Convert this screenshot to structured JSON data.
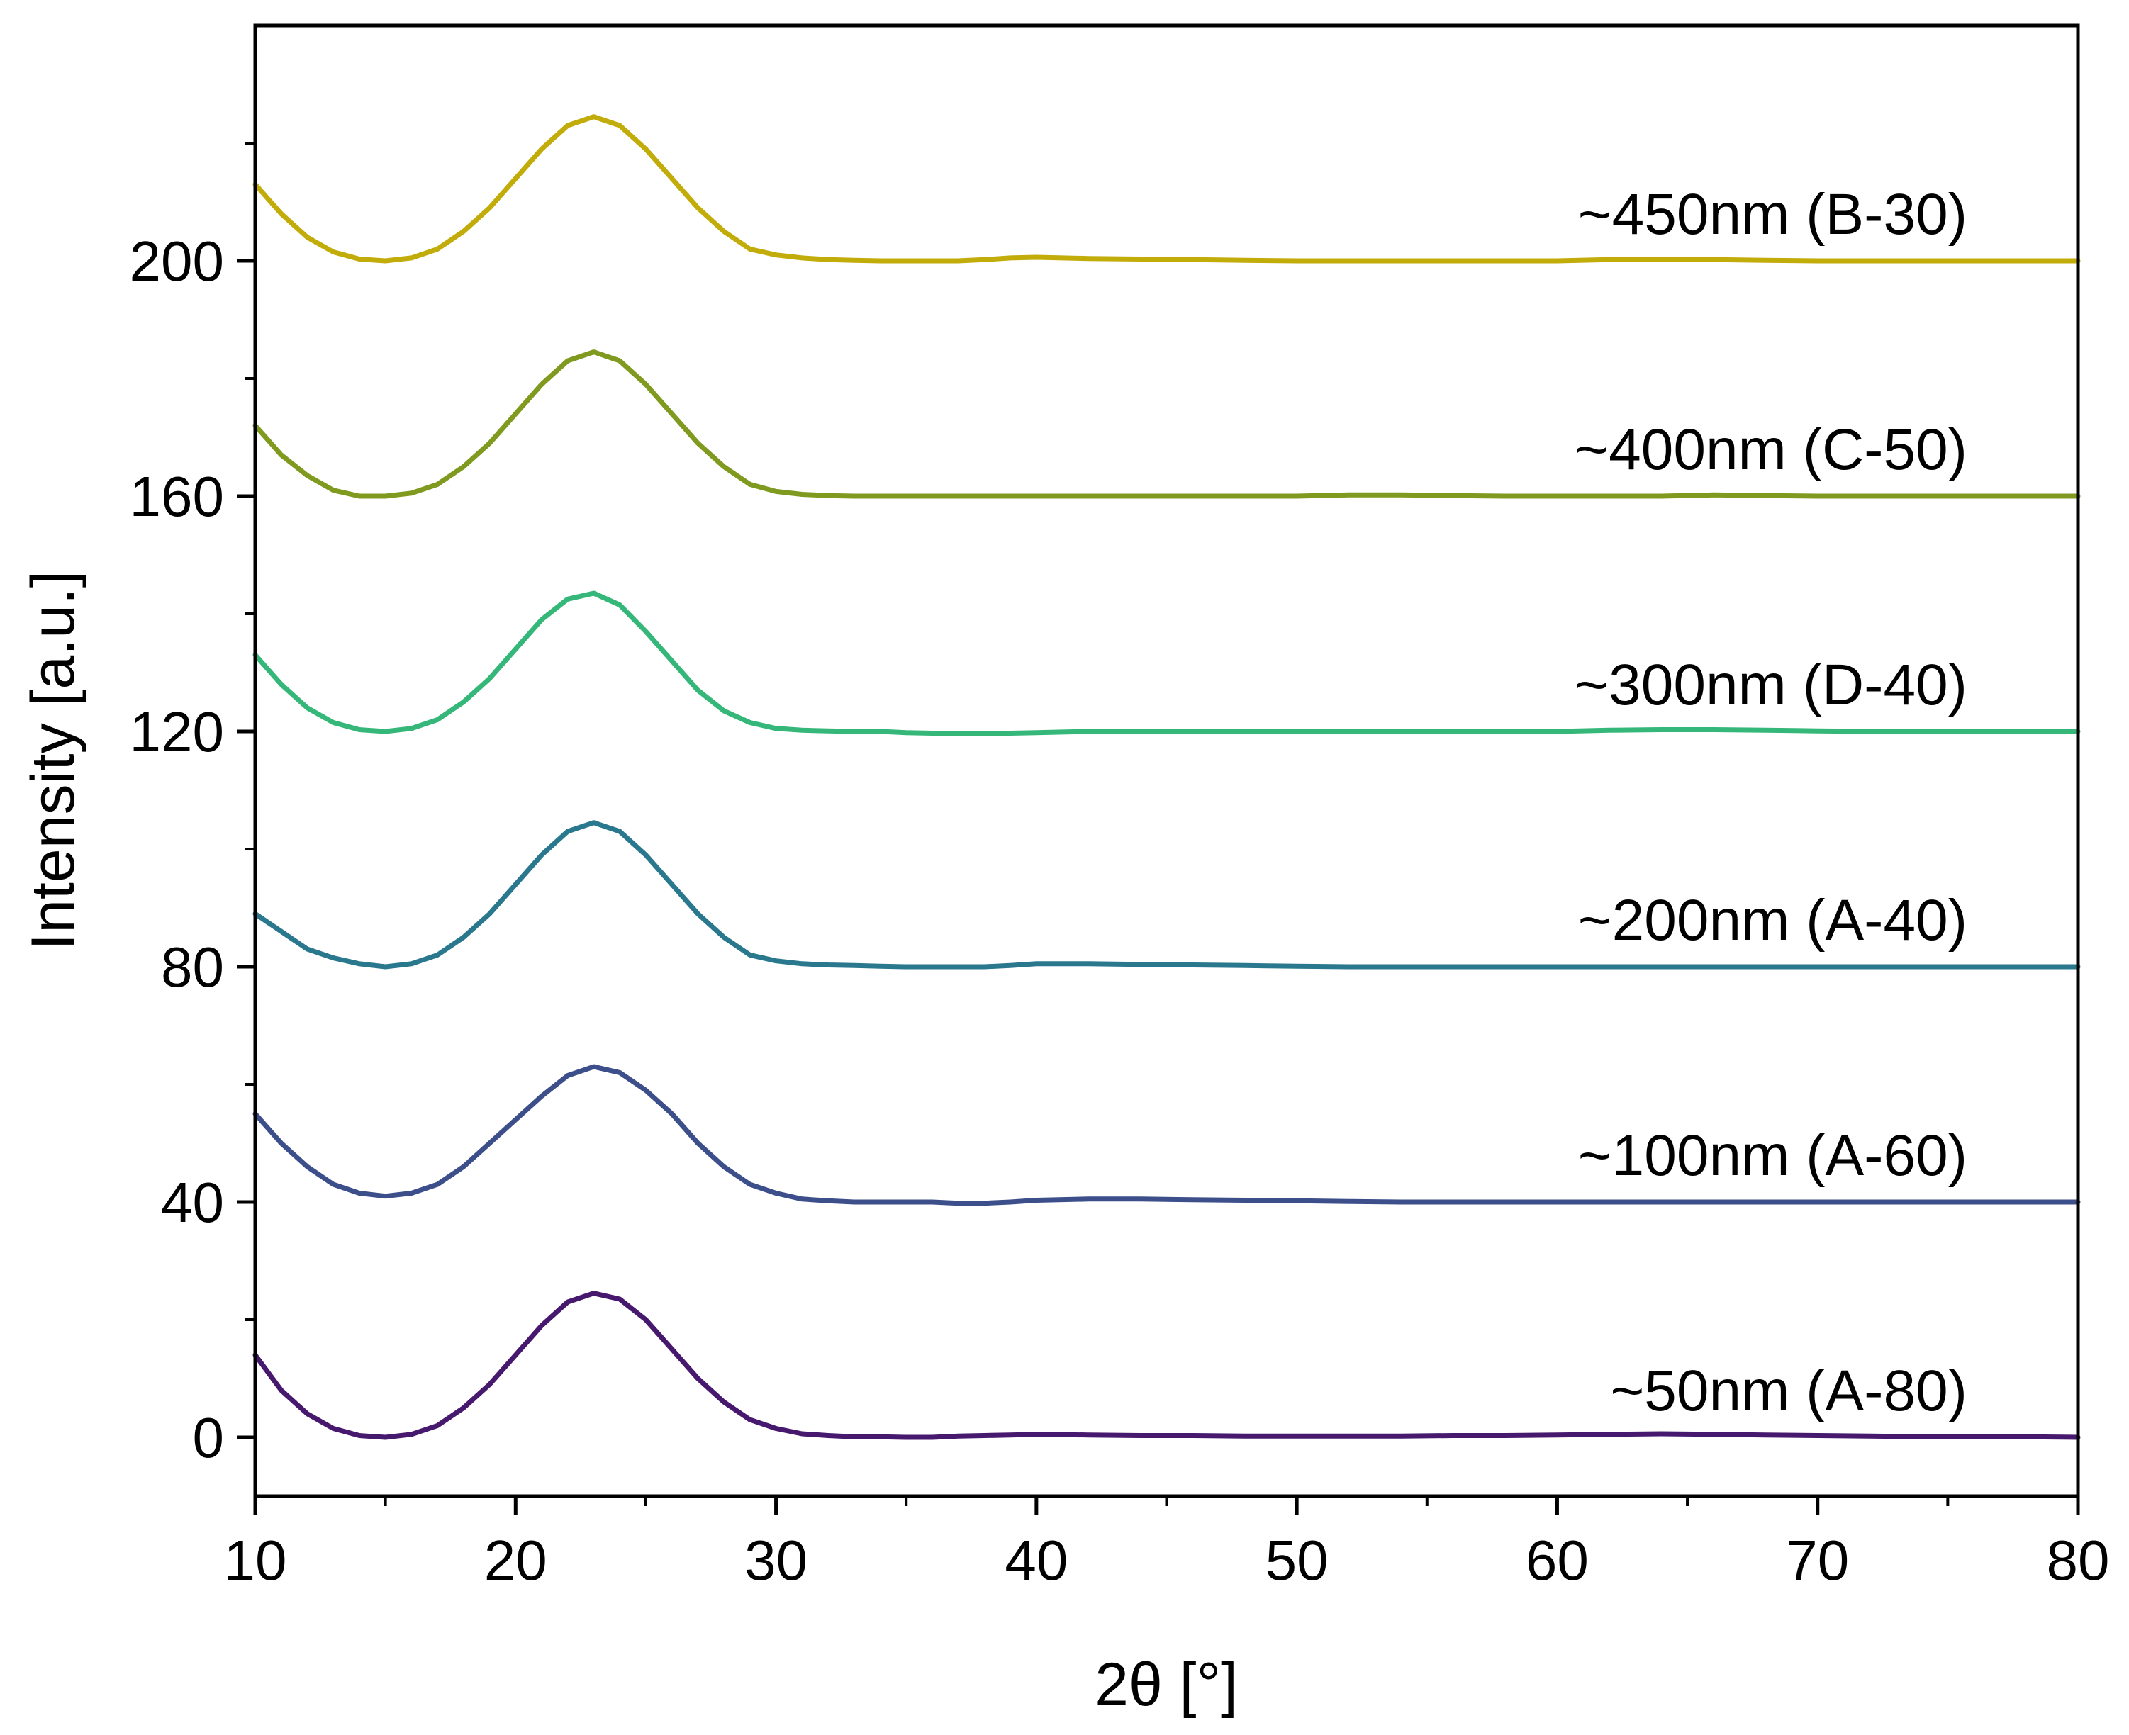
{
  "chart_data": {
    "type": "line",
    "title": "",
    "xlabel": "2θ  [°]",
    "ylabel": "Intensity [a.u.]",
    "xlim": [
      10,
      80
    ],
    "ylim": [
      -10,
      240
    ],
    "x_ticks": [
      10,
      20,
      30,
      40,
      50,
      60,
      70,
      80
    ],
    "x_tick_labels": [
      "10",
      "20",
      "30",
      "40",
      "50",
      "60",
      "70",
      "80"
    ],
    "y_ticks": [
      0,
      40,
      80,
      120,
      160,
      200
    ],
    "y_tick_labels": [
      "0",
      "40",
      "80",
      "120",
      "160",
      "200"
    ],
    "x": [
      10,
      11,
      12,
      13,
      14,
      15,
      16,
      17,
      18,
      19,
      20,
      21,
      22,
      23,
      24,
      25,
      26,
      27,
      28,
      29,
      30,
      31,
      32,
      33,
      34,
      35,
      36,
      37,
      38,
      39,
      40,
      42,
      44,
      46,
      48,
      50,
      52,
      54,
      56,
      58,
      60,
      62,
      64,
      66,
      68,
      70,
      72,
      74,
      76,
      78,
      80
    ],
    "series": [
      {
        "name": "~50nm (A-80)",
        "color": "#46186e",
        "values": [
          14,
          8,
          4,
          1.5,
          0.3,
          0,
          0.5,
          2,
          5,
          9,
          14,
          19,
          23,
          24.5,
          23.5,
          20,
          15,
          10,
          6,
          3,
          1.5,
          0.6,
          0.3,
          0.1,
          0.1,
          0,
          0,
          0.2,
          0.3,
          0.4,
          0.5,
          0.4,
          0.3,
          0.3,
          0.2,
          0.2,
          0.2,
          0.2,
          0.3,
          0.3,
          0.4,
          0.5,
          0.6,
          0.5,
          0.4,
          0.3,
          0.2,
          0.1,
          0.1,
          0.1,
          0
        ]
      },
      {
        "name": "~100nm (A-60)",
        "color": "#3c4f8a",
        "values": [
          55,
          50,
          46,
          43,
          41.5,
          41,
          41.5,
          43,
          46,
          50,
          54,
          58,
          61.5,
          63,
          62,
          59,
          55,
          50,
          46,
          43,
          41.5,
          40.5,
          40.2,
          40,
          40,
          40,
          40,
          39.8,
          39.8,
          40,
          40.3,
          40.5,
          40.5,
          40.4,
          40.3,
          40.2,
          40.1,
          40,
          40,
          40,
          40,
          40,
          40,
          40,
          40,
          40,
          40,
          40,
          40,
          40,
          40
        ]
      },
      {
        "name": "~200nm (A-40)",
        "color": "#2a788e",
        "values": [
          89,
          86,
          83,
          81.5,
          80.5,
          80,
          80.5,
          82,
          85,
          89,
          94,
          99,
          103,
          104.5,
          103,
          99,
          94,
          89,
          85,
          82,
          81,
          80.5,
          80.3,
          80.2,
          80.1,
          80,
          80,
          80,
          80,
          80.2,
          80.5,
          80.5,
          80.4,
          80.3,
          80.2,
          80.1,
          80,
          80,
          80,
          80,
          80,
          80,
          80,
          80,
          80,
          80,
          80,
          80,
          80,
          80,
          80
        ]
      },
      {
        "name": "~300nm (D-40)",
        "color": "#35b779",
        "values": [
          133,
          128,
          124,
          121.5,
          120.3,
          120,
          120.5,
          122,
          125,
          129,
          134,
          139,
          142.5,
          143.5,
          141.5,
          137,
          132,
          127,
          123.5,
          121.5,
          120.5,
          120.2,
          120.1,
          120,
          120,
          119.8,
          119.7,
          119.6,
          119.6,
          119.7,
          119.8,
          120,
          120,
          120,
          120,
          120,
          120,
          120,
          120,
          120,
          120,
          120.2,
          120.3,
          120.3,
          120.2,
          120.1,
          120,
          120,
          120,
          120,
          120
        ]
      },
      {
        "name": "~400nm (C-50)",
        "color": "#7f9a1e",
        "values": [
          172,
          167,
          163.5,
          161,
          160,
          160,
          160.5,
          162,
          165,
          169,
          174,
          179,
          183,
          184.5,
          183,
          179,
          174,
          169,
          165,
          162,
          160.8,
          160.3,
          160.1,
          160,
          160,
          160,
          160,
          160,
          160,
          160,
          160,
          160,
          160,
          160,
          160,
          160,
          160.2,
          160.2,
          160.1,
          160,
          160,
          160,
          160,
          160.2,
          160.1,
          160,
          160,
          160,
          160,
          160,
          160
        ]
      },
      {
        "name": "~450nm (B-30)",
        "color": "#c2ac09",
        "values": [
          213,
          208,
          204,
          201.5,
          200.3,
          200,
          200.5,
          202,
          205,
          209,
          214,
          219,
          223,
          224.5,
          223,
          219,
          214,
          209,
          205,
          202,
          201,
          200.5,
          200.2,
          200.1,
          200,
          200,
          200,
          200,
          200.2,
          200.5,
          200.6,
          200.4,
          200.3,
          200.2,
          200.1,
          200,
          200,
          200,
          200,
          200,
          200,
          200.2,
          200.3,
          200.2,
          200.1,
          200,
          200,
          200,
          200,
          200,
          200
        ]
      }
    ]
  }
}
